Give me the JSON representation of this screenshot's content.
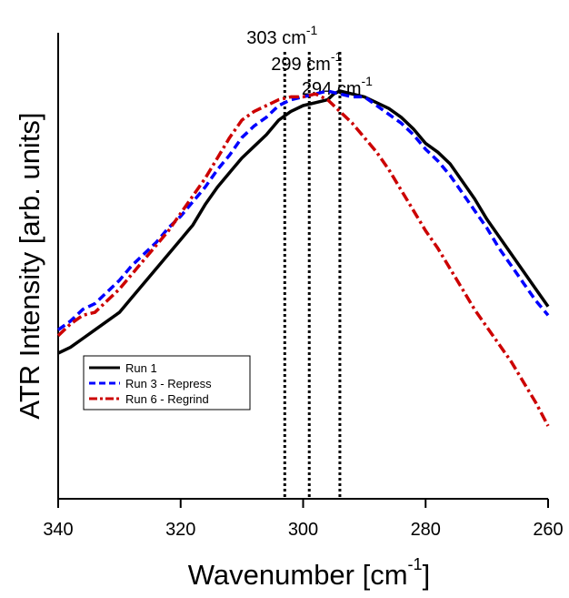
{
  "chart_data": {
    "type": "line",
    "title": "",
    "xlabel": {
      "main": "Wavenumber [cm",
      "sup": "-1",
      "close": "]"
    },
    "ylabel": "ATR Intensity [arb. units]",
    "xlim": [
      340,
      260
    ],
    "x_reversed": true,
    "y_ticks_shown": false,
    "grid": false,
    "legend_position": "lower-left",
    "x_ticks": [
      {
        "value": 340,
        "label": "340"
      },
      {
        "value": 320,
        "label": "320"
      },
      {
        "value": 300,
        "label": "300"
      },
      {
        "value": 280,
        "label": "280"
      },
      {
        "value": 260,
        "label": "260"
      }
    ],
    "annotations": [
      {
        "x": 303,
        "text": "303 cm",
        "sup": "-1"
      },
      {
        "x": 299,
        "text": "299 cm",
        "sup": "-1"
      },
      {
        "x": 294,
        "text": "294 cm",
        "sup": "-1"
      }
    ],
    "series": [
      {
        "name": "Run 1",
        "color": "#000000",
        "dash": "solid",
        "points": [
          [
            340,
            0.5
          ],
          [
            338,
            0.52
          ],
          [
            336,
            0.55
          ],
          [
            334,
            0.58
          ],
          [
            332,
            0.61
          ],
          [
            330,
            0.64
          ],
          [
            328,
            0.69
          ],
          [
            326,
            0.74
          ],
          [
            324,
            0.79
          ],
          [
            322,
            0.84
          ],
          [
            320,
            0.89
          ],
          [
            318,
            0.94
          ],
          [
            316,
            1.01
          ],
          [
            314,
            1.07
          ],
          [
            312,
            1.12
          ],
          [
            310,
            1.17
          ],
          [
            308,
            1.21
          ],
          [
            306,
            1.25
          ],
          [
            304,
            1.3
          ],
          [
            302,
            1.33
          ],
          [
            300,
            1.35
          ],
          [
            298,
            1.36
          ],
          [
            296,
            1.37
          ],
          [
            295,
            1.39
          ],
          [
            294,
            1.4
          ],
          [
            292,
            1.39
          ],
          [
            290,
            1.38
          ],
          [
            288,
            1.36
          ],
          [
            286,
            1.34
          ],
          [
            284,
            1.31
          ],
          [
            282,
            1.27
          ],
          [
            280,
            1.22
          ],
          [
            278,
            1.19
          ],
          [
            276,
            1.15
          ],
          [
            274,
            1.09
          ],
          [
            272,
            1.03
          ],
          [
            270,
            0.96
          ],
          [
            268,
            0.9
          ],
          [
            266,
            0.84
          ],
          [
            264,
            0.78
          ],
          [
            262,
            0.72
          ],
          [
            260,
            0.66
          ]
        ]
      },
      {
        "name": "Run 3 - Repress",
        "color": "#0000ff",
        "dash": "dashed",
        "points": [
          [
            340,
            0.58
          ],
          [
            338,
            0.61
          ],
          [
            336,
            0.65
          ],
          [
            334,
            0.67
          ],
          [
            332,
            0.71
          ],
          [
            330,
            0.75
          ],
          [
            328,
            0.8
          ],
          [
            326,
            0.84
          ],
          [
            324,
            0.88
          ],
          [
            322,
            0.93
          ],
          [
            320,
            0.97
          ],
          [
            318,
            1.02
          ],
          [
            316,
            1.07
          ],
          [
            314,
            1.13
          ],
          [
            312,
            1.18
          ],
          [
            310,
            1.24
          ],
          [
            308,
            1.28
          ],
          [
            306,
            1.31
          ],
          [
            304,
            1.35
          ],
          [
            302,
            1.37
          ],
          [
            300,
            1.38
          ],
          [
            298,
            1.39
          ],
          [
            296,
            1.4
          ],
          [
            294,
            1.39
          ],
          [
            292,
            1.38
          ],
          [
            290,
            1.38
          ],
          [
            288,
            1.35
          ],
          [
            286,
            1.32
          ],
          [
            284,
            1.29
          ],
          [
            282,
            1.25
          ],
          [
            280,
            1.2
          ],
          [
            278,
            1.16
          ],
          [
            276,
            1.11
          ],
          [
            274,
            1.05
          ],
          [
            272,
            0.99
          ],
          [
            270,
            0.93
          ],
          [
            268,
            0.86
          ],
          [
            266,
            0.8
          ],
          [
            264,
            0.74
          ],
          [
            262,
            0.68
          ],
          [
            260,
            0.63
          ]
        ]
      },
      {
        "name": "Run 6 - Regrind",
        "color": "#cc0000",
        "dash": "dashdot",
        "points": [
          [
            340,
            0.56
          ],
          [
            338,
            0.6
          ],
          [
            336,
            0.63
          ],
          [
            334,
            0.64
          ],
          [
            332,
            0.68
          ],
          [
            330,
            0.72
          ],
          [
            328,
            0.77
          ],
          [
            326,
            0.82
          ],
          [
            324,
            0.87
          ],
          [
            322,
            0.92
          ],
          [
            320,
            0.98
          ],
          [
            318,
            1.04
          ],
          [
            316,
            1.1
          ],
          [
            314,
            1.17
          ],
          [
            312,
            1.24
          ],
          [
            310,
            1.3
          ],
          [
            308,
            1.33
          ],
          [
            306,
            1.35
          ],
          [
            304,
            1.37
          ],
          [
            302,
            1.38
          ],
          [
            300,
            1.38
          ],
          [
            298,
            1.39
          ],
          [
            297,
            1.38
          ],
          [
            296,
            1.37
          ],
          [
            294,
            1.33
          ],
          [
            292,
            1.29
          ],
          [
            290,
            1.24
          ],
          [
            288,
            1.19
          ],
          [
            286,
            1.13
          ],
          [
            284,
            1.06
          ],
          [
            282,
            0.99
          ],
          [
            280,
            0.92
          ],
          [
            278,
            0.86
          ],
          [
            276,
            0.79
          ],
          [
            274,
            0.72
          ],
          [
            272,
            0.65
          ],
          [
            270,
            0.59
          ],
          [
            268,
            0.53
          ],
          [
            266,
            0.47
          ],
          [
            264,
            0.4
          ],
          [
            262,
            0.33
          ],
          [
            260,
            0.25
          ]
        ]
      }
    ]
  }
}
